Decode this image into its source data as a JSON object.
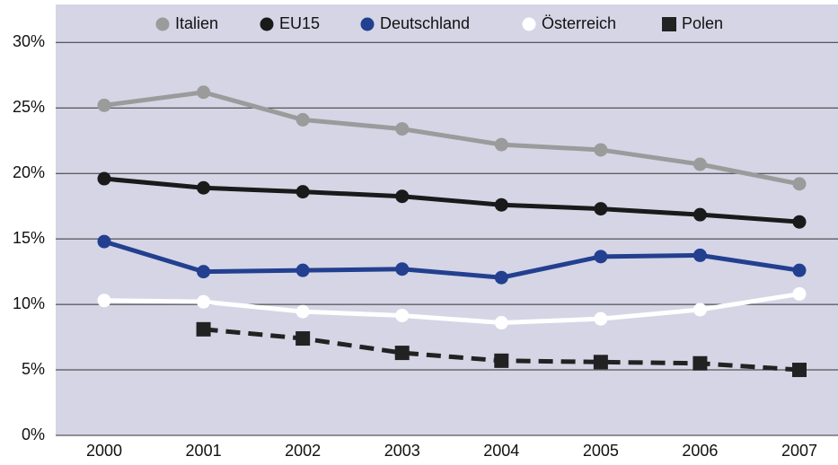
{
  "chart_data": {
    "type": "line",
    "categories": [
      "2000",
      "2001",
      "2002",
      "2003",
      "2004",
      "2005",
      "2006",
      "2007"
    ],
    "series": [
      {
        "name": "Italien",
        "color": "#9b9b9b",
        "marker": "circle",
        "dashed": false,
        "values": [
          25.2,
          26.2,
          24.1,
          23.4,
          22.2,
          21.8,
          20.7,
          19.2
        ]
      },
      {
        "name": "EU15",
        "color": "#1a1a1a",
        "marker": "circle",
        "dashed": false,
        "values": [
          19.6,
          18.9,
          18.6,
          18.25,
          17.6,
          17.3,
          16.85,
          16.3
        ]
      },
      {
        "name": "Deutschland",
        "color": "#233f8f",
        "marker": "circle",
        "dashed": false,
        "values": [
          14.8,
          12.5,
          12.6,
          12.7,
          12.05,
          13.65,
          13.75,
          12.6
        ]
      },
      {
        "name": "Österreich",
        "color": "#ffffff",
        "marker": "circle",
        "dashed": false,
        "values": [
          10.3,
          10.2,
          9.45,
          9.15,
          8.6,
          8.9,
          9.6,
          10.8
        ]
      },
      {
        "name": "Polen",
        "color": "#222222",
        "marker": "square",
        "dashed": true,
        "values": [
          null,
          8.1,
          7.4,
          6.3,
          5.7,
          5.6,
          5.5,
          5.0
        ]
      }
    ],
    "ylim": [
      0,
      32.9
    ],
    "yticks": [
      {
        "value": 0,
        "label": "0%"
      },
      {
        "value": 5,
        "label": "5%"
      },
      {
        "value": 10,
        "label": "10%"
      },
      {
        "value": 15,
        "label": "15%"
      },
      {
        "value": 20,
        "label": "20%"
      },
      {
        "value": 25,
        "label": "25%"
      },
      {
        "value": 30,
        "label": "30%"
      }
    ],
    "grid": true,
    "legend": "top",
    "background": "#d5d5e6"
  }
}
